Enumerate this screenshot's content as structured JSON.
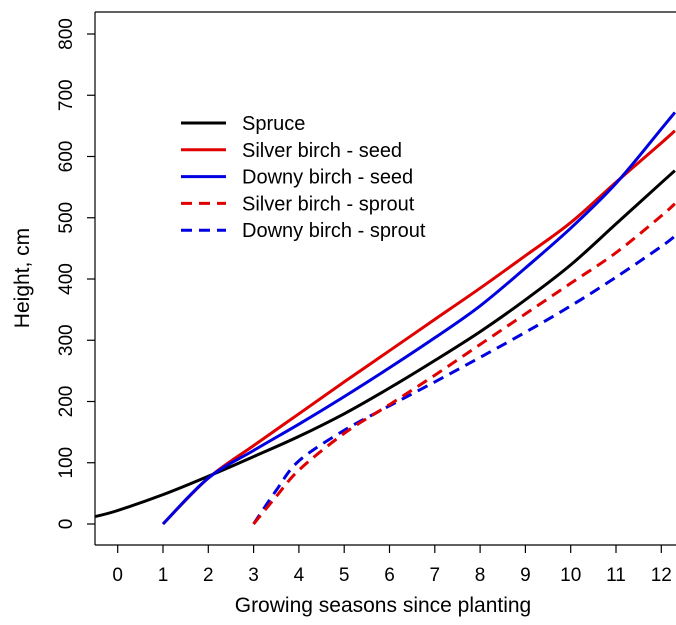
{
  "chart_data": {
    "type": "line",
    "title": "",
    "xlabel": "Growing seasons since planting",
    "ylabel": "Height, cm",
    "xlim": [
      -0.5,
      12.3
    ],
    "ylim": [
      -30,
      830
    ],
    "xticks": [
      0,
      1,
      2,
      3,
      4,
      5,
      6,
      7,
      8,
      9,
      10,
      11,
      12
    ],
    "yticks": [
      0,
      100,
      200,
      300,
      400,
      500,
      600,
      700,
      800
    ],
    "grid": false,
    "legend_position": "top-left",
    "series": [
      {
        "name": "Spruce",
        "color": "#000000",
        "dash": "solid",
        "points": [
          [
            -0.5,
            12
          ],
          [
            0,
            22
          ],
          [
            1,
            48
          ],
          [
            2,
            78
          ],
          [
            3,
            110
          ],
          [
            4,
            143
          ],
          [
            5,
            180
          ],
          [
            6,
            222
          ],
          [
            7,
            267
          ],
          [
            8,
            314
          ],
          [
            9,
            366
          ],
          [
            10,
            423
          ],
          [
            11,
            490
          ],
          [
            12,
            557
          ],
          [
            12.3,
            577
          ]
        ]
      },
      {
        "name": "Silver birch - seed",
        "color": "#e00000",
        "dash": "solid",
        "points": [
          [
            1,
            0
          ],
          [
            2,
            75
          ],
          [
            3,
            128
          ],
          [
            4,
            180
          ],
          [
            5,
            232
          ],
          [
            6,
            283
          ],
          [
            7,
            334
          ],
          [
            8,
            385
          ],
          [
            9,
            438
          ],
          [
            10,
            492
          ],
          [
            11,
            558
          ],
          [
            12,
            622
          ],
          [
            12.3,
            642
          ]
        ]
      },
      {
        "name": "Downy birch - seed",
        "color": "#0000e0",
        "dash": "solid",
        "points": [
          [
            1,
            0
          ],
          [
            2,
            75
          ],
          [
            3,
            120
          ],
          [
            4,
            163
          ],
          [
            5,
            208
          ],
          [
            6,
            255
          ],
          [
            7,
            304
          ],
          [
            8,
            356
          ],
          [
            9,
            418
          ],
          [
            10,
            483
          ],
          [
            11,
            556
          ],
          [
            12,
            645
          ],
          [
            12.3,
            672
          ]
        ]
      },
      {
        "name": "Silver birch - sprout",
        "color": "#e00000",
        "dash": "dashed",
        "points": [
          [
            3,
            0
          ],
          [
            3.5,
            45
          ],
          [
            4,
            88
          ],
          [
            5,
            148
          ],
          [
            6,
            195
          ],
          [
            7,
            243
          ],
          [
            8,
            293
          ],
          [
            9,
            343
          ],
          [
            10,
            393
          ],
          [
            11,
            443
          ],
          [
            12,
            503
          ],
          [
            12.3,
            523
          ]
        ]
      },
      {
        "name": "Downy birch - sprout",
        "color": "#0000e0",
        "dash": "dashed",
        "points": [
          [
            3,
            0
          ],
          [
            3.5,
            55
          ],
          [
            4,
            103
          ],
          [
            5,
            153
          ],
          [
            6,
            193
          ],
          [
            7,
            232
          ],
          [
            8,
            272
          ],
          [
            9,
            313
          ],
          [
            10,
            356
          ],
          [
            11,
            403
          ],
          [
            12,
            453
          ],
          [
            12.3,
            470
          ]
        ]
      }
    ]
  }
}
